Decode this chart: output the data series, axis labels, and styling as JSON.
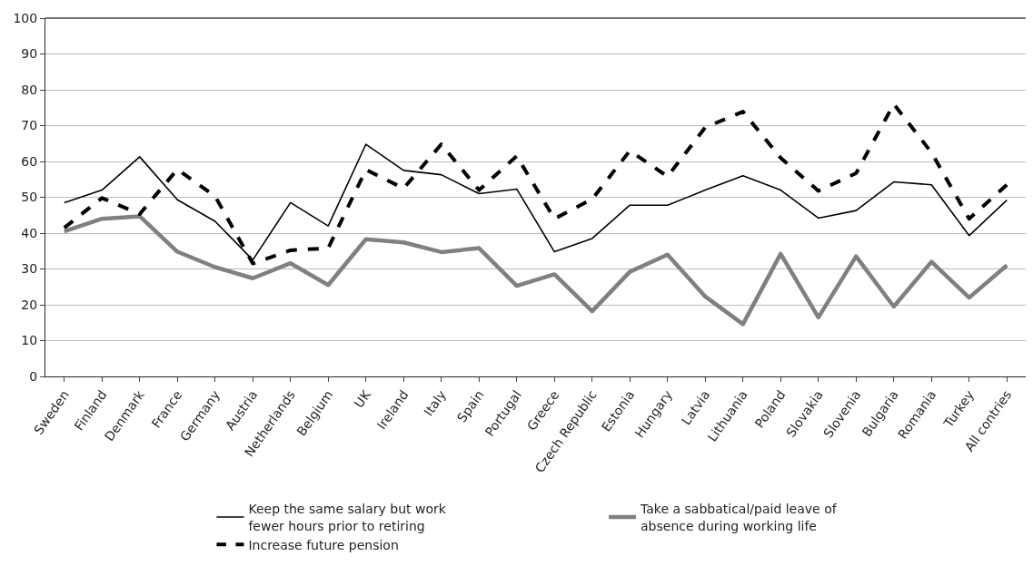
{
  "chart_data": {
    "type": "line",
    "categories": [
      "Sweden",
      "Finland",
      "Denmark",
      "France",
      "Germany",
      "Austria",
      "Netherlands",
      "Belgium",
      "UK",
      "Ireland",
      "Italy",
      "Spain",
      "Portugal",
      "Greece",
      "Czech Republic",
      "Estonia",
      "Hungary",
      "Latvia",
      "Lithuania",
      "Poland",
      "Slovakia",
      "Slovenia",
      "Bulgaria",
      "Romania",
      "Turkey",
      "All contries"
    ],
    "series": [
      {
        "name": "Keep the same salary but work fewer hours prior to retiring",
        "color": "#000000",
        "line_style": "solid",
        "values": [
          48.5,
          52,
          61.3,
          49.3,
          43.3,
          32.5,
          48.5,
          42,
          64.8,
          57.5,
          56.3,
          51,
          52.3,
          34.8,
          38.5,
          47.8,
          47.8,
          52,
          56,
          52,
          44.2,
          46.3,
          54.3,
          53.5,
          39.3,
          49.2
        ]
      },
      {
        "name": "Take a sabbatical/paid leave of absence during working life",
        "color": "#808080",
        "line_style": "solid",
        "values": [
          40.5,
          44,
          44.7,
          34.8,
          30.5,
          27.4,
          31.6,
          25.5,
          38.3,
          37.4,
          34.7,
          35.8,
          25.3,
          28.5,
          18.2,
          29.2,
          34,
          22.3,
          14.6,
          34.2,
          16.5,
          33.5,
          19.5,
          32,
          22,
          31
        ]
      },
      {
        "name": "Increase future pension",
        "color": "#000000",
        "line_style": "dashed",
        "values": [
          41.5,
          49.8,
          45.3,
          57.8,
          50.3,
          31.5,
          35.2,
          35.8,
          57.7,
          52.5,
          64.8,
          52,
          61.5,
          44,
          49.5,
          63,
          55.8,
          69.5,
          73.9,
          61,
          51.8,
          56.7,
          76,
          62.5,
          44,
          53.5
        ]
      }
    ],
    "ylim": [
      0,
      100
    ],
    "yticks": [
      0,
      10,
      20,
      30,
      40,
      50,
      60,
      70,
      80,
      90,
      100
    ],
    "grid": "y",
    "legend": "bottom",
    "marker": "none"
  }
}
